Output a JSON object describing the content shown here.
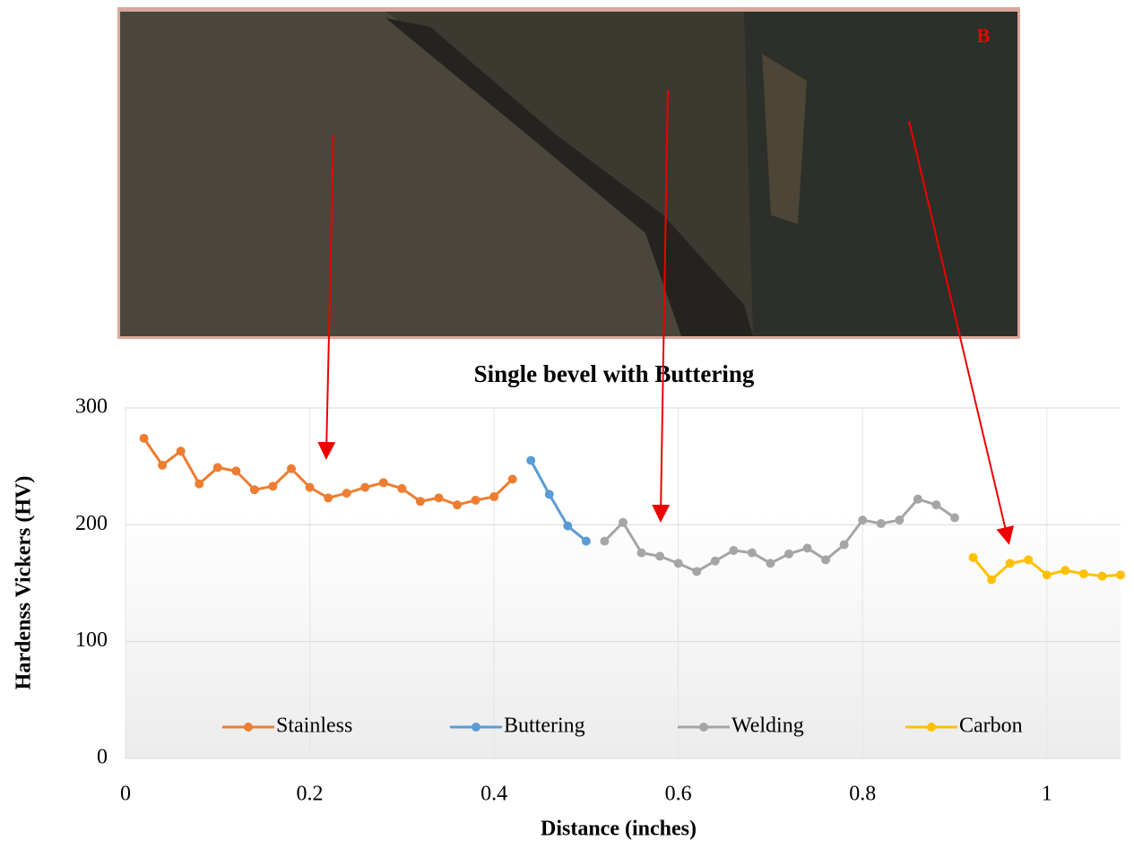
{
  "chart_data": {
    "type": "line",
    "title": "Single bevel with Buttering",
    "photo_label": "B",
    "x_label": "Distance (inches)",
    "y_label": "Hardenss Vickers (HV)",
    "xlim": [
      0,
      1.08
    ],
    "ylim": [
      0,
      300
    ],
    "xticks": [
      0,
      0.2,
      0.4,
      0.6,
      0.8,
      1
    ],
    "yticks": [
      0,
      100,
      200,
      300
    ],
    "grid": true,
    "legend": "bottom",
    "series": [
      {
        "name": "Stainless",
        "color": "#ed7d31",
        "x": [
          0.02,
          0.04,
          0.06,
          0.08,
          0.1,
          0.12,
          0.14,
          0.16,
          0.18,
          0.2,
          0.22,
          0.24,
          0.26,
          0.28,
          0.3,
          0.32,
          0.34,
          0.36,
          0.38,
          0.4,
          0.42
        ],
        "values": [
          274,
          251,
          263,
          235,
          249,
          246,
          230,
          233,
          248,
          232,
          223,
          227,
          232,
          236,
          231,
          220,
          223,
          217,
          221,
          224,
          239
        ]
      },
      {
        "name": "Buttering",
        "color": "#5b9bd5",
        "x": [
          0.44,
          0.46,
          0.48,
          0.5
        ],
        "values": [
          255,
          226,
          199,
          186
        ]
      },
      {
        "name": "Welding",
        "color": "#a5a5a5",
        "x": [
          0.52,
          0.54,
          0.56,
          0.58,
          0.6,
          0.62,
          0.64,
          0.66,
          0.68,
          0.7,
          0.72,
          0.74,
          0.76,
          0.78,
          0.8,
          0.82,
          0.84,
          0.86,
          0.88,
          0.9
        ],
        "values": [
          186,
          202,
          176,
          173,
          167,
          160,
          169,
          178,
          176,
          167,
          175,
          180,
          170,
          183,
          204,
          201,
          204,
          222,
          217,
          206
        ]
      },
      {
        "name": "Carbon",
        "color": "#ffc000",
        "x": [
          0.92,
          0.94,
          0.96,
          0.98,
          1,
          1.02,
          1.04,
          1.06,
          1.08
        ],
        "values": [
          172,
          153,
          167,
          170,
          157,
          161,
          158,
          156,
          157
        ]
      }
    ]
  }
}
